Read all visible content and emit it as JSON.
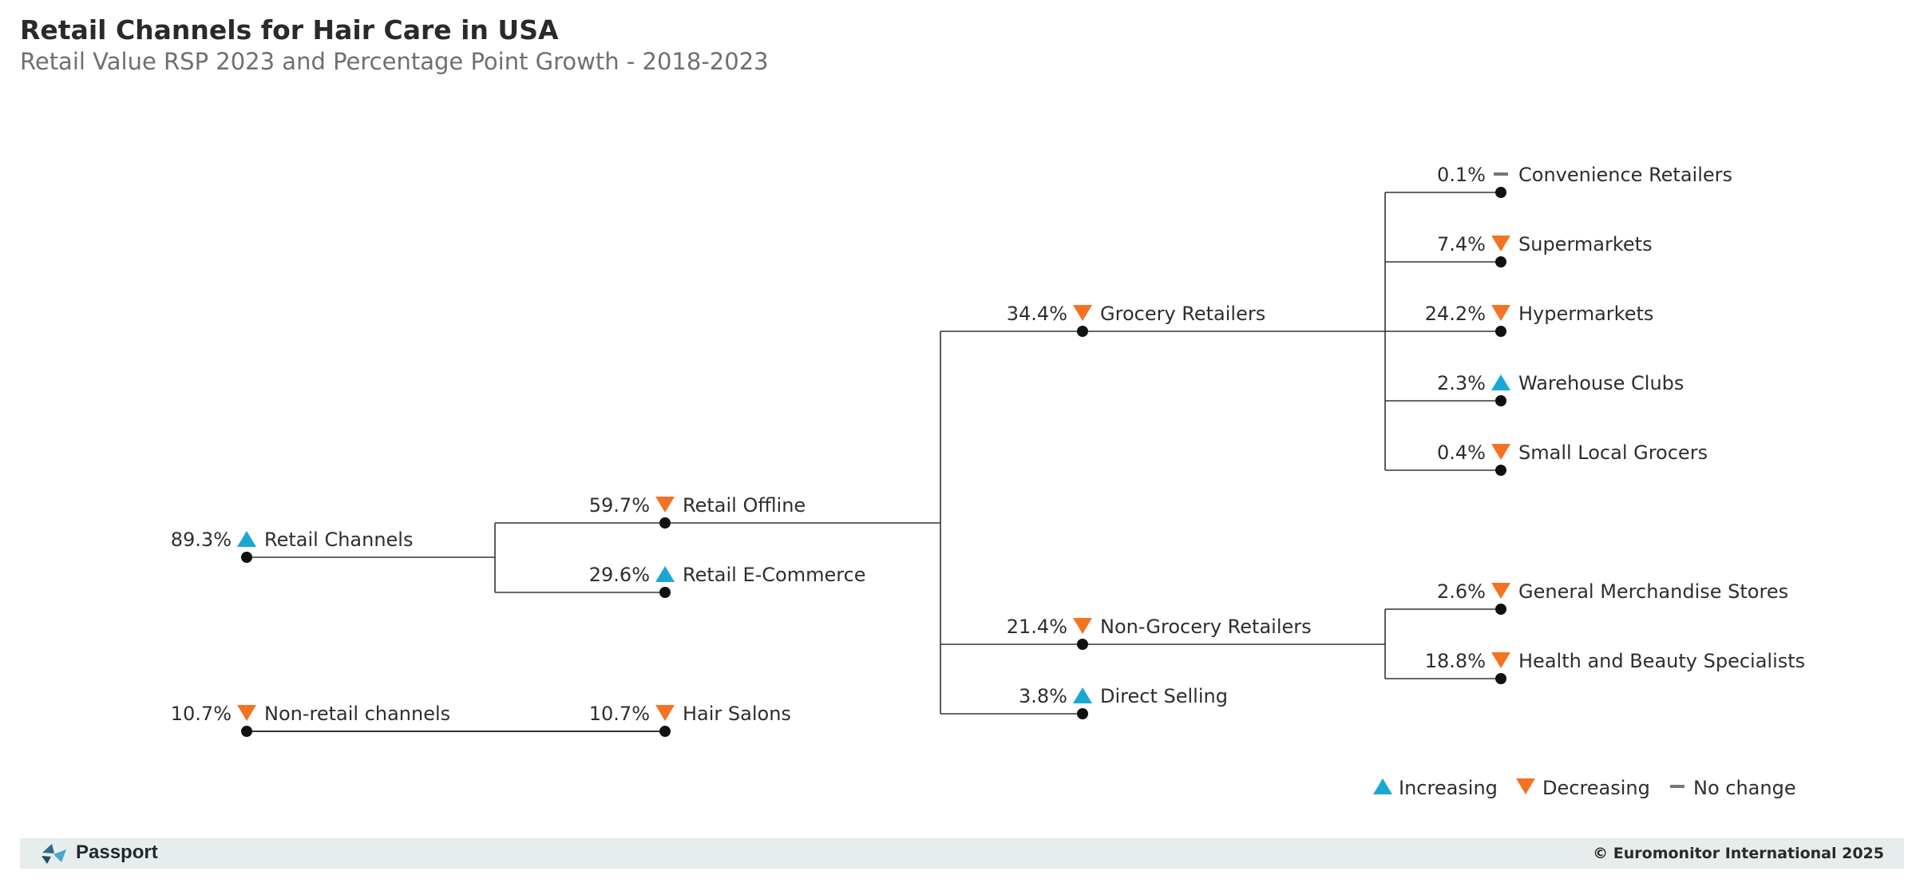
{
  "title": "Retail Channels for Hair Care in USA",
  "subtitle": "Retail Value RSP 2023 and Percentage Point Growth - 2018-2023",
  "colors": {
    "increasing": "#1aa7d4",
    "decreasing": "#f47321",
    "no_change": "#777777",
    "line": "#333333"
  },
  "nodes": {
    "retail_channels": {
      "value": "89.3%",
      "label": "Retail Channels",
      "trend": "increasing"
    },
    "non_retail_channels": {
      "value": "10.7%",
      "label": "Non-retail channels",
      "trend": "decreasing"
    },
    "retail_offline": {
      "value": "59.7%",
      "label": "Retail Offline",
      "trend": "decreasing"
    },
    "retail_ecommerce": {
      "value": "29.6%",
      "label": "Retail E-Commerce",
      "trend": "increasing"
    },
    "hair_salons": {
      "value": "10.7%",
      "label": "Hair Salons",
      "trend": "decreasing"
    },
    "grocery_retailers": {
      "value": "34.4%",
      "label": "Grocery Retailers",
      "trend": "decreasing"
    },
    "non_grocery_retailers": {
      "value": "21.4%",
      "label": "Non-Grocery Retailers",
      "trend": "decreasing"
    },
    "direct_selling": {
      "value": "3.8%",
      "label": "Direct Selling",
      "trend": "increasing"
    },
    "convenience_retailers": {
      "value": "0.1%",
      "label": "Convenience Retailers",
      "trend": "no_change"
    },
    "supermarkets": {
      "value": "7.4%",
      "label": "Supermarkets",
      "trend": "decreasing"
    },
    "hypermarkets": {
      "value": "24.2%",
      "label": "Hypermarkets",
      "trend": "decreasing"
    },
    "warehouse_clubs": {
      "value": "2.3%",
      "label": "Warehouse Clubs",
      "trend": "increasing"
    },
    "small_local_grocers": {
      "value": "0.4%",
      "label": "Small Local Grocers",
      "trend": "decreasing"
    },
    "general_merchandise_stores": {
      "value": "2.6%",
      "label": "General Merchandise Stores",
      "trend": "decreasing"
    },
    "health_beauty_specialists": {
      "value": "18.8%",
      "label": "Health and Beauty Specialists",
      "trend": "decreasing"
    }
  },
  "legend": {
    "increasing": "Increasing",
    "decreasing": "Decreasing",
    "no_change": "No change"
  },
  "footer": {
    "brand": "Passport",
    "copyright": "© Euromonitor International 2025"
  }
}
